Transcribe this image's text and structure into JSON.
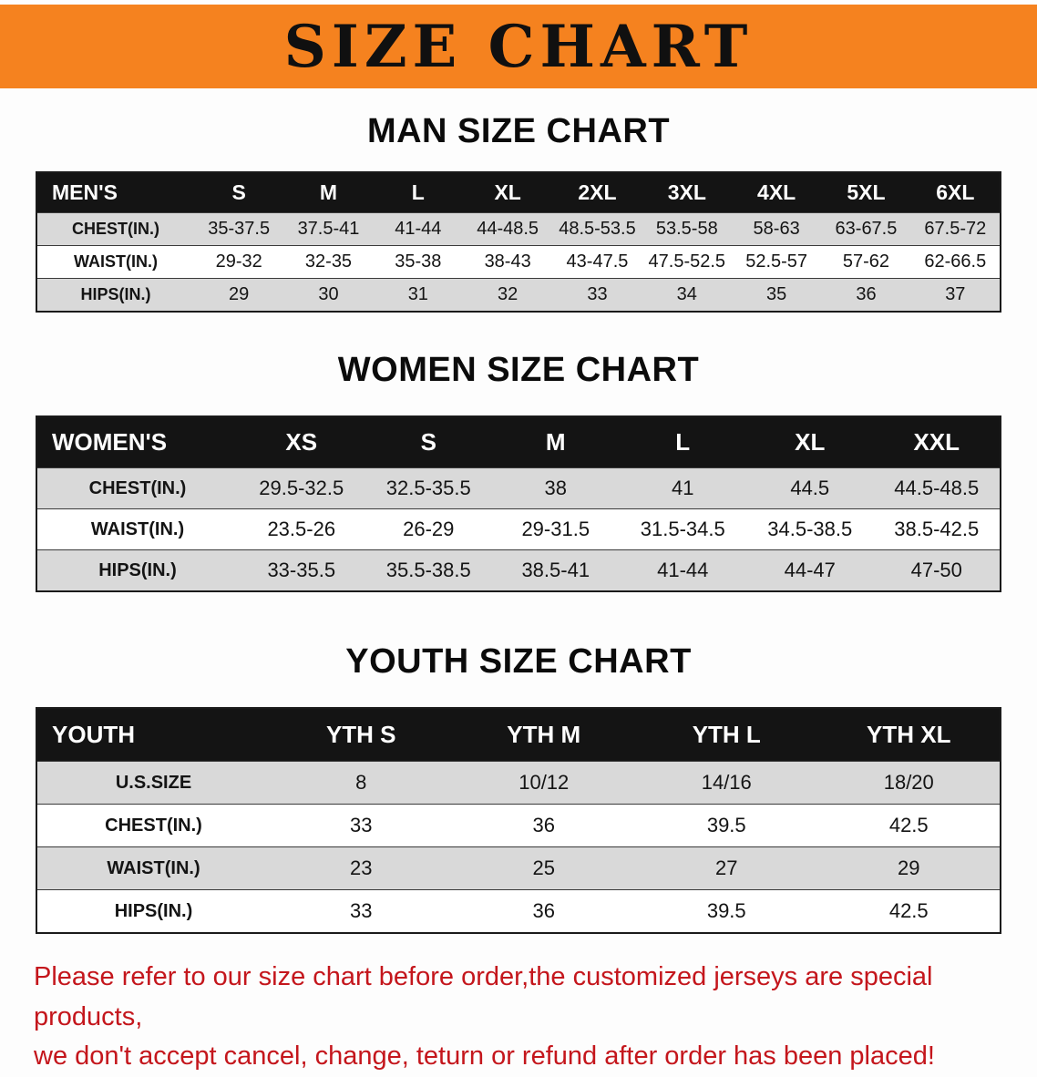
{
  "banner": {
    "title": "SIZE CHART",
    "background_color": "#F5821F",
    "text_color": "#101010"
  },
  "sections": [
    {
      "id": "men",
      "heading": "MAN SIZE CHART",
      "table": {
        "header": [
          "MEN'S",
          "S",
          "M",
          "L",
          "XL",
          "2XL",
          "3XL",
          "4XL",
          "5XL",
          "6XL"
        ],
        "rows": [
          [
            "CHEST(IN.)",
            "35-37.5",
            "37.5-41",
            "41-44",
            "44-48.5",
            "48.5-53.5",
            "53.5-58",
            "58-63",
            "63-67.5",
            "67.5-72"
          ],
          [
            "WAIST(IN.)",
            "29-32",
            "32-35",
            "35-38",
            "38-43",
            "43-47.5",
            "47.5-52.5",
            "52.5-57",
            "57-62",
            "62-66.5"
          ],
          [
            "HIPS(IN.)",
            "29",
            "30",
            "31",
            "32",
            "33",
            "34",
            "35",
            "36",
            "37"
          ]
        ]
      }
    },
    {
      "id": "women",
      "heading": "WOMEN SIZE CHART",
      "table": {
        "header": [
          "WOMEN'S",
          "XS",
          "S",
          "M",
          "L",
          "XL",
          "XXL"
        ],
        "rows": [
          [
            "CHEST(IN.)",
            "29.5-32.5",
            "32.5-35.5",
            "38",
            "41",
            "44.5",
            "44.5-48.5"
          ],
          [
            "WAIST(IN.)",
            "23.5-26",
            "26-29",
            "29-31.5",
            "31.5-34.5",
            "34.5-38.5",
            "38.5-42.5"
          ],
          [
            "HIPS(IN.)",
            "33-35.5",
            "35.5-38.5",
            "38.5-41",
            "41-44",
            "44-47",
            "47-50"
          ]
        ]
      }
    },
    {
      "id": "youth",
      "heading": "YOUTH SIZE CHART",
      "table": {
        "header": [
          "YOUTH",
          "YTH S",
          "YTH M",
          "YTH L",
          "YTH XL"
        ],
        "rows": [
          [
            "U.S.SIZE",
            "8",
            "10/12",
            "14/16",
            "18/20"
          ],
          [
            "CHEST(IN.)",
            "33",
            "36",
            "39.5",
            "42.5"
          ],
          [
            "WAIST(IN.)",
            "23",
            "25",
            "27",
            "29"
          ],
          [
            "HIPS(IN.)",
            "33",
            "36",
            "39.5",
            "42.5"
          ]
        ]
      }
    }
  ],
  "footer": {
    "line1": "Please refer to our size chart before order,the customized jerseys are special products,",
    "line2": "we don't accept cancel, change, teturn or refund after order has been placed!",
    "text_color": "#C4161C"
  },
  "colors": {
    "table_header_bg": "#141414",
    "row_shade": "#D9D9D9",
    "table_header_text": "#FFFFFF"
  }
}
